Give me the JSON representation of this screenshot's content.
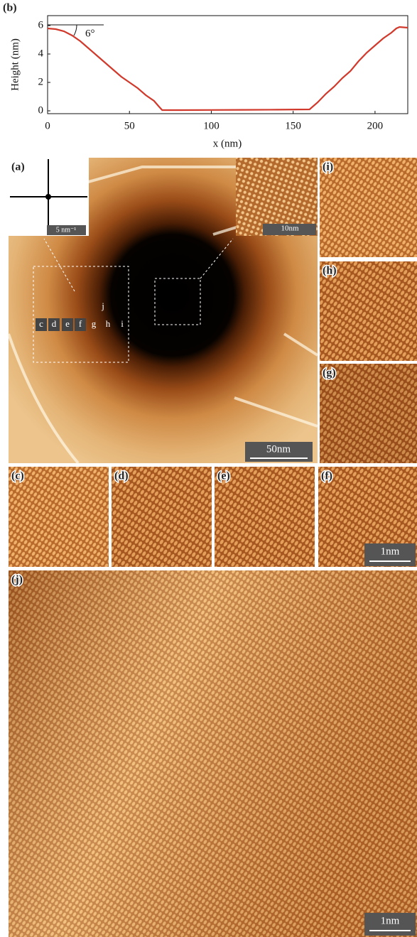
{
  "chart_data": {
    "type": "line",
    "panel_label": "(b)",
    "xlabel": "x (nm)",
    "ylabel": "Height (nm)",
    "annotation": "6°",
    "x": [
      0,
      5,
      10,
      15,
      20,
      25,
      30,
      35,
      40,
      45,
      50,
      55,
      60,
      65,
      68,
      70,
      80,
      100,
      120,
      140,
      160,
      165,
      170,
      175,
      180,
      185,
      190,
      195,
      200,
      205,
      210,
      213,
      215,
      220
    ],
    "values": [
      5.8,
      5.75,
      5.6,
      5.3,
      4.9,
      4.4,
      3.9,
      3.4,
      2.9,
      2.4,
      2.0,
      1.6,
      1.1,
      0.7,
      0.3,
      0.05,
      0.05,
      0.06,
      0.07,
      0.08,
      0.1,
      0.6,
      1.2,
      1.7,
      2.3,
      2.8,
      3.5,
      4.1,
      4.6,
      5.1,
      5.5,
      5.8,
      5.9,
      5.85
    ],
    "color": "#d0392b",
    "xlim": [
      0,
      220
    ],
    "ylim": [
      -0.2,
      6.7
    ],
    "xticks": [
      0,
      50,
      100,
      150,
      200
    ],
    "yticks": [
      0,
      2,
      4,
      6
    ]
  },
  "panels": {
    "a": {
      "label": "(a)",
      "fft_scale": "5 nm⁻¹",
      "inset_scale": "10nm",
      "scale": "50nm",
      "markers": [
        "c",
        "d",
        "e",
        "f",
        "g",
        "h",
        "i",
        "j"
      ]
    },
    "c": {
      "label": "(c)"
    },
    "d": {
      "label": "(d)"
    },
    "e": {
      "label": "(e)"
    },
    "f": {
      "label": "(f)",
      "scale": "1nm"
    },
    "g": {
      "label": "(g)"
    },
    "h": {
      "label": "(h)"
    },
    "i": {
      "label": "(i)"
    },
    "j": {
      "label": "(j)",
      "scale": "1nm"
    }
  }
}
